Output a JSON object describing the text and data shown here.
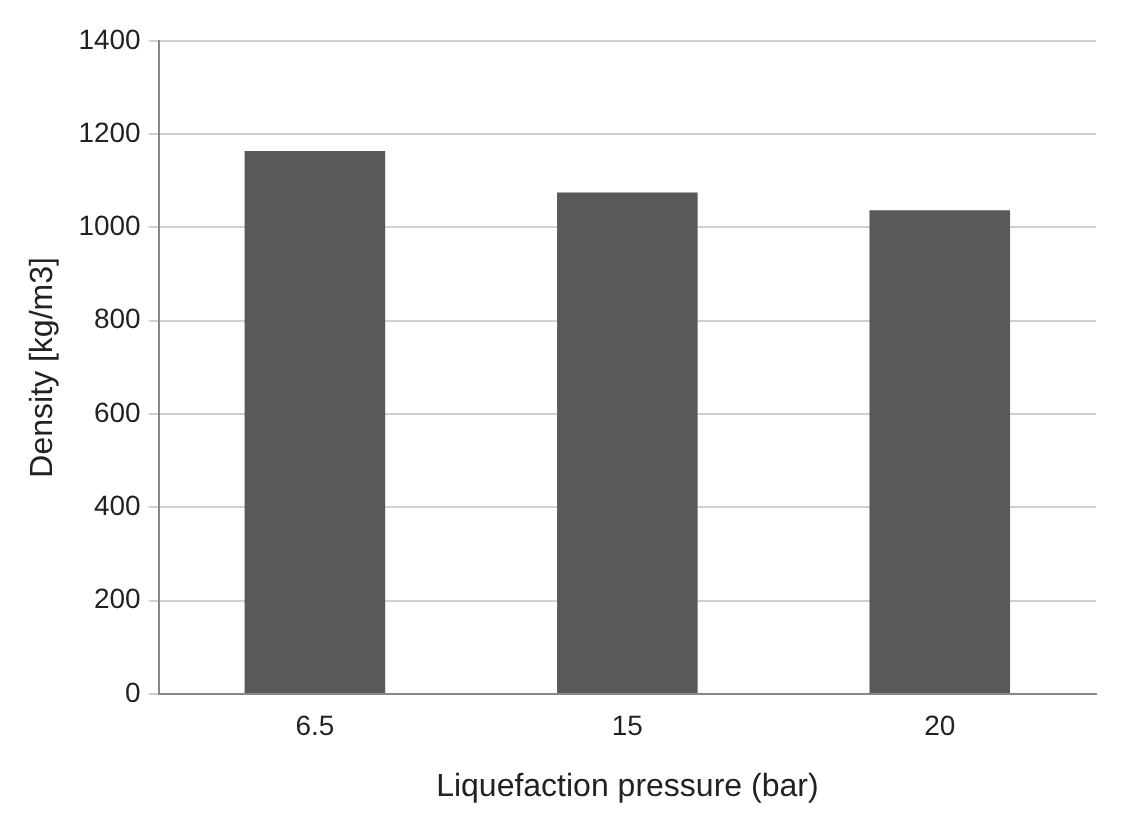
{
  "chart_data": {
    "type": "bar",
    "xlabel": "Liquefaction pressure (bar)",
    "ylabel": "Density [kg/m3]",
    "categories": [
      "6.5",
      "15",
      "20"
    ],
    "values": [
      1164,
      1075,
      1037
    ],
    "color": "#595959",
    "ylim": [
      0,
      1400
    ],
    "yticks": [
      0,
      200,
      400,
      600,
      800,
      1000,
      1200,
      1400
    ],
    "grid": "y",
    "legend": false
  }
}
